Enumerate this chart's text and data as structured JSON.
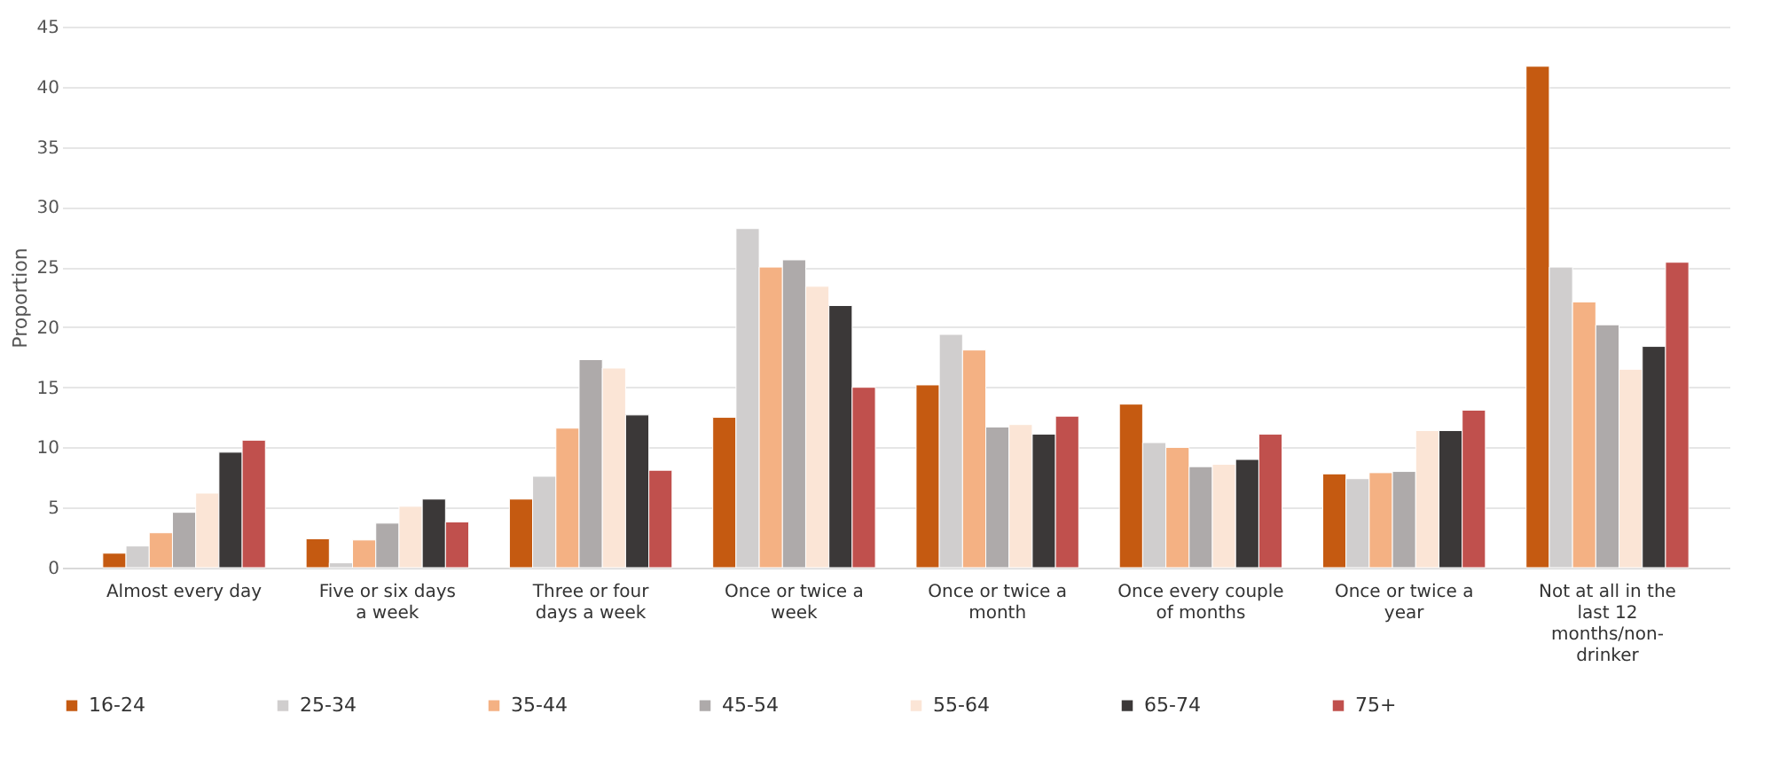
{
  "chart_data": {
    "type": "bar",
    "ylabel": "Proportion",
    "categories": [
      "Almost every day",
      "Five or six days a week",
      "Three or four days a week",
      "Once or twice a week",
      "Once or twice a month",
      "Once every couple of months",
      "Once or twice a year",
      "Not at all in the last 12 months/non-drinker"
    ],
    "series": [
      {
        "name": "16-24",
        "color": "#c55a11",
        "values": [
          1.2,
          2.4,
          5.7,
          12.5,
          15.2,
          13.6,
          7.8,
          41.7
        ]
      },
      {
        "name": "25-34",
        "color": "#d0cece",
        "values": [
          1.8,
          0.4,
          7.6,
          28.2,
          19.4,
          10.4,
          7.4,
          25.0
        ]
      },
      {
        "name": "35-44",
        "color": "#f4b183",
        "values": [
          2.9,
          2.3,
          11.6,
          25.0,
          18.1,
          10.0,
          7.9,
          22.1
        ]
      },
      {
        "name": "45-54",
        "color": "#aeaaaa",
        "values": [
          4.6,
          3.7,
          17.3,
          25.6,
          11.7,
          8.4,
          8.0,
          20.2
        ]
      },
      {
        "name": "55-64",
        "color": "#fbe5d6",
        "values": [
          6.2,
          5.1,
          16.6,
          23.4,
          11.9,
          8.6,
          11.4,
          16.5
        ]
      },
      {
        "name": "65-74",
        "color": "#3b3838",
        "values": [
          9.6,
          5.7,
          12.7,
          21.8,
          11.1,
          9.0,
          11.4,
          18.4
        ]
      },
      {
        "name": "75+",
        "color": "#c0504d",
        "values": [
          10.6,
          3.8,
          8.1,
          15.0,
          12.6,
          11.1,
          13.1,
          25.4
        ]
      }
    ],
    "ylim": [
      0,
      45
    ],
    "yticks": [
      0,
      5,
      10,
      15,
      20,
      25,
      30,
      35,
      40,
      45
    ],
    "grid": "y",
    "legend": "bottom"
  }
}
